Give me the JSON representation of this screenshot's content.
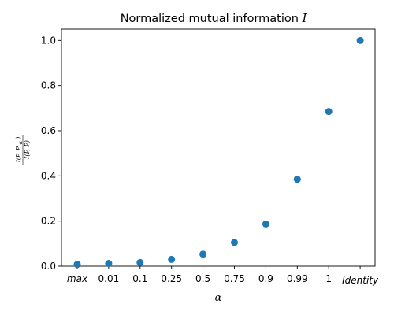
{
  "chart_data": {
    "type": "scatter",
    "title": "Normalized mutual information",
    "title_symbol": "I",
    "xlabel": "α",
    "ylabel": {
      "numerator": "I(P, P",
      "numerator_sub": "α",
      "numerator_close": ")",
      "denominator": "I(P, P)"
    },
    "categories": [
      "max",
      "0.01",
      "0.1",
      "0.25",
      "0.5",
      "0.75",
      "0.9",
      "0.99",
      "1",
      "Identity"
    ],
    "italic_categories": [
      "max",
      "Identity"
    ],
    "values": [
      0.008,
      0.012,
      0.016,
      0.03,
      0.053,
      0.105,
      0.187,
      0.385,
      0.685,
      1.0
    ],
    "ylim": [
      0,
      1.05
    ],
    "yticks": [
      0.0,
      0.2,
      0.4,
      0.6,
      0.8,
      1.0
    ],
    "ytick_labels": [
      "0.0",
      "0.2",
      "0.4",
      "0.6",
      "0.8",
      "1.0"
    ],
    "marker_color": "#1f77b4",
    "grid": false,
    "legend": "none"
  }
}
